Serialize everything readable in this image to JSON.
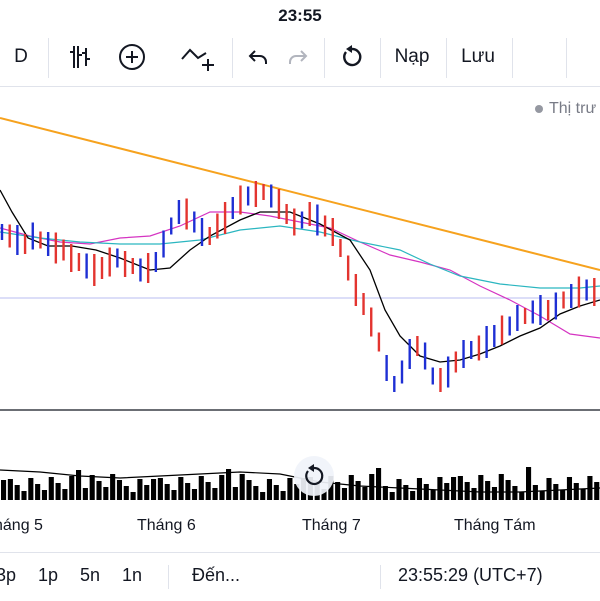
{
  "status_bar": {
    "time": "23:55"
  },
  "toolbar": {
    "interval_label": "D",
    "load_label": "Nạp",
    "save_label": "Lưu",
    "icons": [
      "bar-style-icon",
      "add-indicator-icon",
      "indicators-icon",
      "undo-icon",
      "redo-icon",
      "reload-icon"
    ]
  },
  "chart": {
    "legend_hint": "Thị trư",
    "colors": {
      "up_bar": "#1e2fd4",
      "down_bar": "#e3342f",
      "trendline": "#f6a21e",
      "ma_fast": "#000000",
      "ma_mid": "#2bb6c0",
      "ma_slow": "#d534c2",
      "volume": "#000000"
    },
    "x_axis_labels": [
      "háng 5",
      "Tháng 6",
      "Tháng 7",
      "Tháng Tám"
    ]
  },
  "bottom_bar": {
    "range_3m": "3p",
    "range_1m": "1p",
    "range_5d": "5n",
    "range_1d": "1n",
    "goto_label": "Đến...",
    "clock": "23:55:29 (UTC+7)"
  }
}
